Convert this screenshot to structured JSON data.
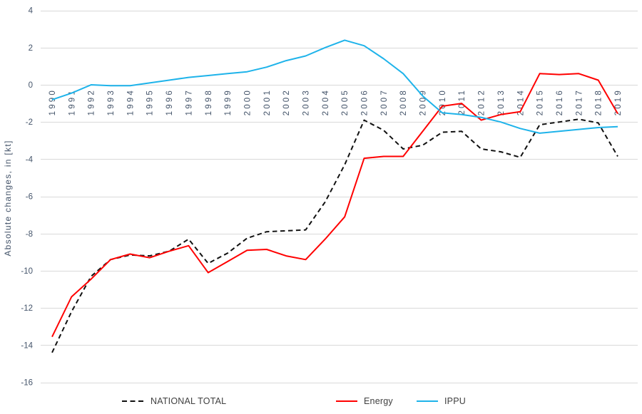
{
  "chart_data": {
    "type": "line",
    "title": "",
    "xlabel": "",
    "ylabel": "Absolute changes, in [kt]",
    "ylim": [
      -16,
      4
    ],
    "y_ticks": [
      4,
      2,
      0,
      -2,
      -4,
      -6,
      -8,
      -10,
      -12,
      -14,
      -16
    ],
    "grid": "horizontal",
    "legend_position": "bottom",
    "x": [
      1990,
      1991,
      1992,
      1993,
      1994,
      1995,
      1996,
      1997,
      1998,
      1999,
      2000,
      2001,
      2002,
      2003,
      2004,
      2005,
      2006,
      2007,
      2008,
      2009,
      2010,
      2011,
      2012,
      2013,
      2014,
      2015,
      2016,
      2017,
      2018,
      2019
    ],
    "series": [
      {
        "name": "NATIONAL TOTAL",
        "style": "dashed",
        "color": "#111111",
        "values": [
          -14.4,
          -12.2,
          -10.3,
          -9.4,
          -9.15,
          -9.2,
          -8.95,
          -8.3,
          -9.6,
          -9.05,
          -8.25,
          -7.9,
          -7.85,
          -7.8,
          -6.3,
          -4.3,
          -1.9,
          -2.45,
          -3.45,
          -3.25,
          -2.55,
          -2.5,
          -3.45,
          -3.6,
          -3.9,
          -2.15,
          -2.0,
          -1.85,
          -2.05,
          -3.85
        ]
      },
      {
        "name": "Energy",
        "style": "solid",
        "color": "#ff0000",
        "values": [
          -13.55,
          -11.4,
          -10.45,
          -9.4,
          -9.1,
          -9.3,
          -8.95,
          -8.65,
          -10.1,
          -9.5,
          -8.9,
          -8.85,
          -9.2,
          -9.4,
          -8.3,
          -7.1,
          -3.95,
          -3.85,
          -3.85,
          -2.5,
          -1.15,
          -1.0,
          -1.9,
          -1.6,
          -1.45,
          0.6,
          0.55,
          0.6,
          0.25,
          -1.55
        ]
      },
      {
        "name": "IPPU",
        "style": "solid",
        "color": "#1eb3ea",
        "values": [
          -0.8,
          -0.45,
          0.0,
          -0.05,
          -0.05,
          0.1,
          0.25,
          0.4,
          0.5,
          0.6,
          0.7,
          0.95,
          1.3,
          1.55,
          2.0,
          2.4,
          2.1,
          1.4,
          0.6,
          -0.6,
          -1.5,
          -1.6,
          -1.75,
          -2.0,
          -2.35,
          -2.6,
          -2.5,
          -2.4,
          -2.3,
          -2.25
        ]
      }
    ],
    "colors": {
      "gridline": "#d9d9d9",
      "tick_label": "#44546a",
      "legend_text": "#404040"
    }
  }
}
